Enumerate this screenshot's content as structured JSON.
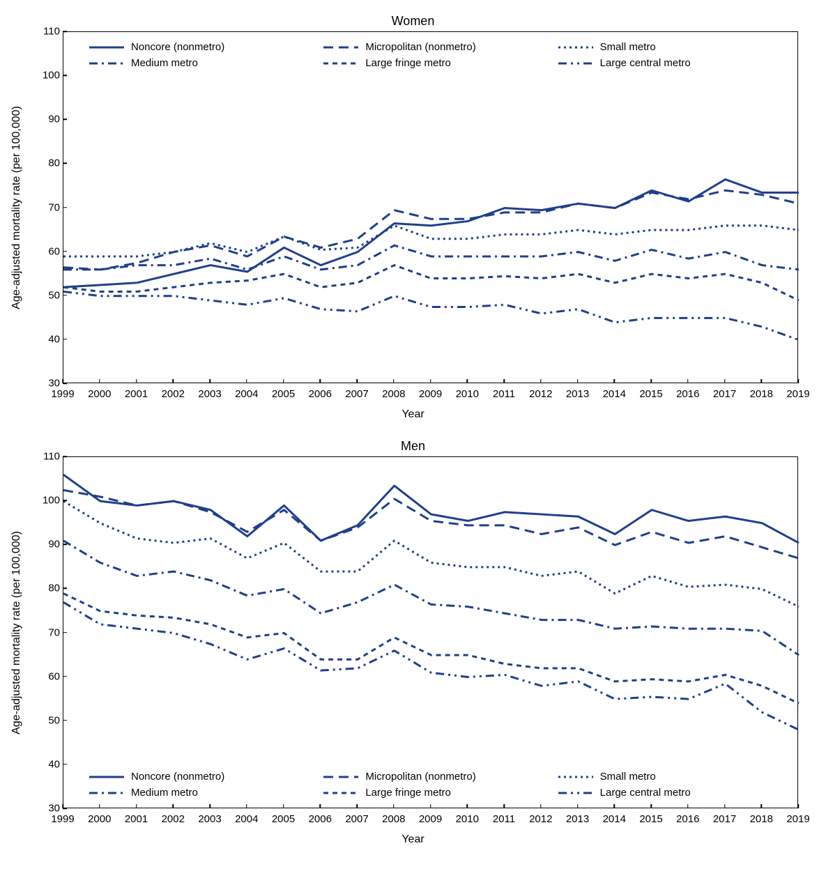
{
  "line_color": "#1f3f8c",
  "line_width": 3,
  "background_color": "#ffffff",
  "border_color": "#000000",
  "text_color": "#000000",
  "tick_fontsize": 15,
  "label_fontsize": 16,
  "title_fontsize": 18,
  "panels": [
    {
      "title": "Women",
      "ylabel": "Age-adjusted mortality rate (per 100,000)",
      "xlabel": "Year",
      "ylim": [
        30,
        110
      ],
      "ytick_step": 10,
      "legend_position": "top",
      "years": [
        1999,
        2000,
        2001,
        2002,
        2003,
        2004,
        2005,
        2006,
        2007,
        2008,
        2009,
        2010,
        2011,
        2012,
        2013,
        2014,
        2015,
        2016,
        2017,
        2018,
        2019
      ],
      "series": [
        {
          "name": "Noncore (nonmetro)",
          "dash": "solid",
          "values": [
            52,
            52.5,
            53,
            55,
            57,
            55.5,
            61,
            57,
            60,
            66.5,
            66,
            67,
            70,
            69.5,
            71,
            70,
            74,
            71.5,
            76.5,
            73.5,
            73.5
          ]
        },
        {
          "name": "Micropolitan (nonmetro)",
          "dash": "long",
          "values": [
            56.5,
            56,
            57.5,
            60,
            61.5,
            59,
            63.5,
            61,
            63,
            69.5,
            67.5,
            67.5,
            69,
            69,
            71,
            70,
            73.5,
            72,
            74,
            73,
            71
          ]
        },
        {
          "name": "Small metro",
          "dash": "dot",
          "values": [
            59,
            59,
            59,
            60,
            62,
            60,
            63.5,
            60.5,
            61,
            66,
            63,
            63,
            64,
            64,
            65,
            64,
            65,
            65,
            66,
            66,
            65
          ]
        },
        {
          "name": "Medium metro",
          "dash": "dashdot",
          "values": [
            56,
            56,
            57,
            57,
            58.5,
            56,
            59,
            56,
            57,
            61.5,
            59,
            59,
            59,
            59,
            60,
            58,
            60.5,
            58.5,
            60,
            57,
            56
          ]
        },
        {
          "name": "Large fringe metro",
          "dash": "short",
          "values": [
            52,
            51,
            51,
            52,
            53,
            53.5,
            55,
            52,
            53,
            57,
            54,
            54,
            54.5,
            54,
            55,
            53,
            55,
            54,
            55,
            53,
            49
          ]
        },
        {
          "name": "Large central metro",
          "dash": "dashdotdot",
          "values": [
            51,
            50,
            50,
            50,
            49,
            48,
            49.5,
            47,
            46.5,
            50,
            47.5,
            47.5,
            48,
            46,
            47,
            44,
            45,
            45,
            45,
            43,
            40
          ]
        }
      ]
    },
    {
      "title": "Men",
      "ylabel": "Age-adjusted mortality rate (per 100,000)",
      "xlabel": "Year",
      "ylim": [
        30,
        110
      ],
      "ytick_step": 10,
      "legend_position": "bottom",
      "years": [
        1999,
        2000,
        2001,
        2002,
        2003,
        2004,
        2005,
        2006,
        2007,
        2008,
        2009,
        2010,
        2011,
        2012,
        2013,
        2014,
        2015,
        2016,
        2017,
        2018,
        2019
      ],
      "series": [
        {
          "name": "Noncore (nonmetro)",
          "dash": "solid",
          "values": [
            106,
            100,
            99,
            100,
            98,
            92,
            99,
            91,
            94.5,
            103.5,
            97,
            95.5,
            97.5,
            97,
            96.5,
            92.5,
            98,
            95.5,
            96.5,
            95,
            90.5
          ]
        },
        {
          "name": "Micropolitan (nonmetro)",
          "dash": "long",
          "values": [
            102.5,
            101,
            99,
            100,
            97.5,
            93,
            98,
            91,
            94,
            100.5,
            95.5,
            94.5,
            94.5,
            92.5,
            94,
            90,
            93,
            90.5,
            92,
            89.5,
            87
          ]
        },
        {
          "name": "Small metro",
          "dash": "dot",
          "values": [
            100,
            95,
            91.5,
            90.5,
            91.5,
            87,
            90.5,
            84,
            84,
            91,
            86,
            85,
            85,
            83,
            84,
            79,
            83,
            80.5,
            81,
            80,
            76
          ]
        },
        {
          "name": "Medium metro",
          "dash": "dashdot",
          "values": [
            91,
            86,
            83,
            84,
            82,
            78.5,
            80,
            74.5,
            77,
            81,
            76.5,
            76,
            74.5,
            73,
            73,
            71,
            71.5,
            71,
            71,
            70.5,
            65
          ]
        },
        {
          "name": "Large fringe metro",
          "dash": "short",
          "values": [
            79,
            75,
            74,
            73.5,
            72,
            69,
            70,
            64,
            64,
            69,
            65,
            65,
            63,
            62,
            62,
            59,
            59.5,
            59,
            60.5,
            58,
            54
          ]
        },
        {
          "name": "Large central metro",
          "dash": "dashdotdot",
          "values": [
            77,
            72,
            71,
            70,
            67.5,
            64,
            66.5,
            61.5,
            62,
            66,
            61,
            60,
            60.5,
            58,
            59,
            55,
            55.5,
            55,
            58.5,
            52,
            48
          ]
        }
      ]
    }
  ],
  "dash_patterns": {
    "solid": "",
    "long": "14 8",
    "dot": "3 5",
    "dashdot": "12 6 3 6",
    "short": "7 6",
    "dashdotdot": "12 6 3 6 3 6"
  }
}
